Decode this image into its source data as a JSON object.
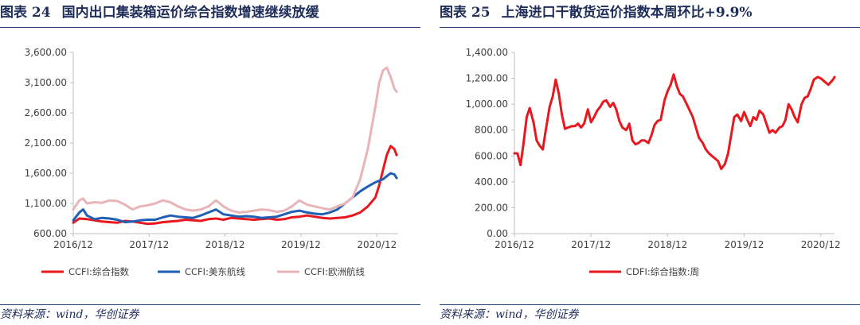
{
  "panels": [
    {
      "figure_label": "图表 24",
      "title": "国内出口集装箱运价综合指数增速继续放缓",
      "source": "资料来源：wind，华创证券"
    },
    {
      "figure_label": "图表 25",
      "title": "上海进口干散货运价指数本周环比+9.9%",
      "source": "资料来源：wind，华创证券"
    }
  ],
  "colors": {
    "red": "#e8181e",
    "blue": "#1f5fb4",
    "pink": "#e8b4b8",
    "axis": "#bfbfbf",
    "text": "#1f2d5a"
  },
  "chart_data": [
    {
      "type": "line",
      "title": "",
      "xlabel": "",
      "ylabel": "",
      "ylim": [
        600,
        3600
      ],
      "yticks": [
        "3,600.00",
        "3,100.00",
        "2,600.00",
        "2,100.00",
        "1,600.00",
        "1,100.00",
        "600.00"
      ],
      "ytick_values": [
        3600,
        3100,
        2600,
        2100,
        1600,
        1100,
        600
      ],
      "xticks": [
        "2016/12",
        "2017/12",
        "2018/12",
        "2019/12",
        "2020/12"
      ],
      "xtick_values": [
        2016.92,
        2017.92,
        2018.92,
        2019.92,
        2020.92
      ],
      "xlim": [
        2016.92,
        2021.2
      ],
      "grid": false,
      "legend": "bottom",
      "series": [
        {
          "name": "CCFI:综合指数",
          "color": "#e8181e",
          "x": [
            2016.92,
            2017.0,
            2017.1,
            2017.2,
            2017.3,
            2017.4,
            2017.5,
            2017.6,
            2017.7,
            2017.8,
            2017.9,
            2018.0,
            2018.1,
            2018.2,
            2018.3,
            2018.4,
            2018.5,
            2018.6,
            2018.7,
            2018.8,
            2018.9,
            2019.0,
            2019.1,
            2019.2,
            2019.3,
            2019.4,
            2019.5,
            2019.6,
            2019.7,
            2019.8,
            2019.9,
            2020.0,
            2020.1,
            2020.2,
            2020.3,
            2020.4,
            2020.5,
            2020.6,
            2020.7,
            2020.8,
            2020.9,
            2020.95,
            2021.0,
            2021.05,
            2021.1,
            2021.15,
            2021.18
          ],
          "values": [
            780,
            850,
            840,
            820,
            800,
            790,
            780,
            810,
            800,
            780,
            760,
            770,
            790,
            800,
            810,
            830,
            820,
            810,
            840,
            850,
            830,
            860,
            850,
            840,
            830,
            840,
            850,
            830,
            840,
            870,
            880,
            900,
            880,
            860,
            850,
            860,
            870,
            900,
            950,
            1050,
            1200,
            1400,
            1650,
            1900,
            2050,
            2000,
            1900
          ]
        },
        {
          "name": "CCFI:美东航线",
          "color": "#1f5fb4",
          "x": [
            2016.92,
            2017.0,
            2017.05,
            2017.1,
            2017.2,
            2017.3,
            2017.4,
            2017.5,
            2017.6,
            2017.7,
            2017.8,
            2017.9,
            2018.0,
            2018.1,
            2018.2,
            2018.3,
            2018.4,
            2018.5,
            2018.6,
            2018.7,
            2018.8,
            2018.9,
            2019.0,
            2019.1,
            2019.2,
            2019.3,
            2019.4,
            2019.5,
            2019.6,
            2019.7,
            2019.8,
            2019.9,
            2020.0,
            2020.1,
            2020.2,
            2020.3,
            2020.4,
            2020.5,
            2020.6,
            2020.7,
            2020.8,
            2020.9,
            2021.0,
            2021.05,
            2021.1,
            2021.15,
            2021.18
          ],
          "values": [
            820,
            950,
            1000,
            900,
            840,
            860,
            850,
            830,
            790,
            800,
            820,
            830,
            830,
            870,
            900,
            880,
            870,
            860,
            900,
            950,
            1000,
            920,
            900,
            880,
            890,
            880,
            860,
            870,
            880,
            920,
            960,
            980,
            950,
            930,
            920,
            950,
            1000,
            1100,
            1200,
            1300,
            1380,
            1450,
            1500,
            1550,
            1600,
            1580,
            1520
          ]
        },
        {
          "name": "CCFI:欧洲航线",
          "color": "#e8b4b8",
          "x": [
            2016.92,
            2017.0,
            2017.05,
            2017.1,
            2017.2,
            2017.3,
            2017.4,
            2017.5,
            2017.6,
            2017.7,
            2017.8,
            2017.9,
            2018.0,
            2018.1,
            2018.2,
            2018.3,
            2018.4,
            2018.5,
            2018.6,
            2018.7,
            2018.8,
            2018.9,
            2019.0,
            2019.1,
            2019.2,
            2019.3,
            2019.4,
            2019.5,
            2019.6,
            2019.7,
            2019.8,
            2019.9,
            2020.0,
            2020.1,
            2020.2,
            2020.3,
            2020.4,
            2020.5,
            2020.6,
            2020.7,
            2020.8,
            2020.9,
            2020.95,
            2021.0,
            2021.05,
            2021.1,
            2021.15,
            2021.18
          ],
          "values": [
            1000,
            1150,
            1180,
            1100,
            1120,
            1110,
            1150,
            1140,
            1080,
            1000,
            1050,
            1070,
            1100,
            1150,
            1120,
            1050,
            1000,
            980,
            1000,
            1050,
            1150,
            1050,
            980,
            950,
            960,
            980,
            1000,
            990,
            960,
            980,
            1050,
            1150,
            1080,
            1050,
            1020,
            1000,
            1050,
            1100,
            1200,
            1500,
            2000,
            2700,
            3100,
            3300,
            3350,
            3200,
            3000,
            2950
          ]
        }
      ]
    },
    {
      "type": "line",
      "title": "",
      "xlabel": "",
      "ylabel": "",
      "ylim": [
        0,
        1400
      ],
      "yticks": [
        "1,400.00",
        "1,200.00",
        "1,000.00",
        "800.00",
        "600.00",
        "400.00",
        "200.00",
        "0.00"
      ],
      "ytick_values": [
        1400,
        1200,
        1000,
        800,
        600,
        400,
        200,
        0
      ],
      "xticks": [
        "2016/12",
        "2017/12",
        "2018/12",
        "2019/12",
        "2020/12"
      ],
      "xtick_values": [
        2016.92,
        2017.92,
        2018.92,
        2019.92,
        2020.92
      ],
      "xlim": [
        2016.92,
        2021.1
      ],
      "grid": false,
      "legend": "bottom",
      "series": [
        {
          "name": "CDFI:综合指数:周",
          "color": "#e8181e",
          "x": [
            2016.92,
            2016.96,
            2017.0,
            2017.04,
            2017.08,
            2017.12,
            2017.17,
            2017.21,
            2017.25,
            2017.29,
            2017.33,
            2017.38,
            2017.42,
            2017.46,
            2017.5,
            2017.54,
            2017.58,
            2017.62,
            2017.67,
            2017.71,
            2017.75,
            2017.79,
            2017.83,
            2017.88,
            2017.92,
            2017.96,
            2018.0,
            2018.04,
            2018.08,
            2018.12,
            2018.17,
            2018.21,
            2018.25,
            2018.29,
            2018.33,
            2018.38,
            2018.42,
            2018.46,
            2018.5,
            2018.54,
            2018.58,
            2018.62,
            2018.67,
            2018.71,
            2018.75,
            2018.79,
            2018.83,
            2018.88,
            2018.92,
            2018.96,
            2019.0,
            2019.04,
            2019.08,
            2019.12,
            2019.17,
            2019.21,
            2019.25,
            2019.29,
            2019.33,
            2019.38,
            2019.42,
            2019.46,
            2019.5,
            2019.54,
            2019.58,
            2019.62,
            2019.67,
            2019.71,
            2019.75,
            2019.79,
            2019.83,
            2019.88,
            2019.92,
            2019.96,
            2020.0,
            2020.04,
            2020.08,
            2020.12,
            2020.17,
            2020.21,
            2020.25,
            2020.29,
            2020.33,
            2020.38,
            2020.42,
            2020.46,
            2020.5,
            2020.54,
            2020.58,
            2020.62,
            2020.67,
            2020.71,
            2020.75,
            2020.79,
            2020.83,
            2020.88,
            2020.92,
            2020.96,
            2021.0,
            2021.02,
            2021.05,
            2021.08,
            2021.1
          ],
          "values": [
            620,
            620,
            530,
            700,
            900,
            970,
            860,
            720,
            680,
            650,
            800,
            980,
            1060,
            1190,
            1080,
            920,
            810,
            820,
            830,
            830,
            850,
            820,
            850,
            960,
            860,
            900,
            950,
            980,
            1020,
            1030,
            980,
            1010,
            960,
            870,
            820,
            800,
            850,
            720,
            690,
            700,
            720,
            720,
            700,
            760,
            840,
            870,
            880,
            1030,
            1100,
            1150,
            1230,
            1140,
            1080,
            1060,
            1000,
            950,
            900,
            820,
            740,
            700,
            650,
            620,
            600,
            580,
            560,
            500,
            540,
            620,
            760,
            900,
            920,
            870,
            940,
            880,
            830,
            900,
            880,
            950,
            920,
            850,
            780,
            800,
            780,
            820,
            830,
            880,
            1000,
            960,
            900,
            860,
            1000,
            1050,
            1060,
            1120,
            1190,
            1210,
            1200,
            1180,
            1160,
            1150,
            1170,
            1190,
            1210
          ]
        }
      ]
    }
  ]
}
